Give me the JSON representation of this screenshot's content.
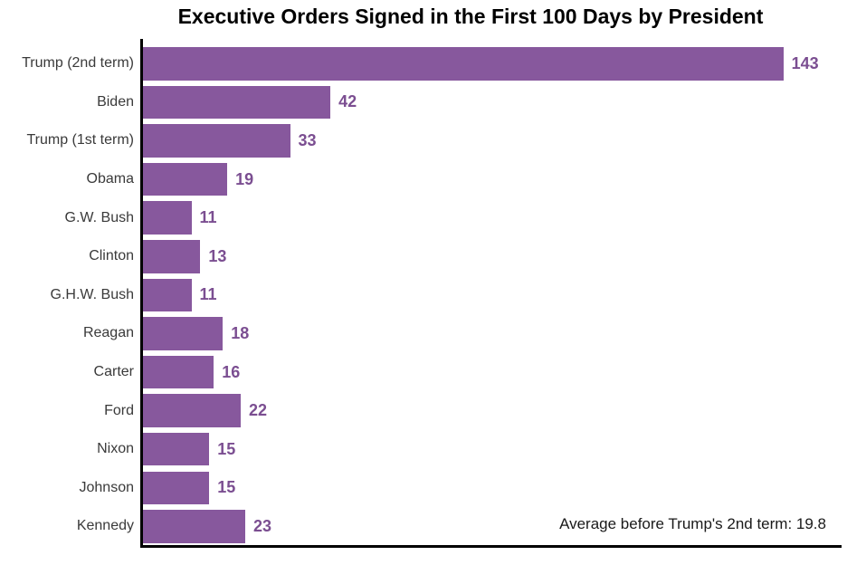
{
  "chart_data": {
    "type": "bar",
    "orientation": "horizontal",
    "title": "Executive Orders Signed in the First 100 Days by President",
    "categories": [
      "Trump (2nd term)",
      "Biden",
      "Trump (1st term)",
      "Obama",
      "G.W. Bush",
      "Clinton",
      "G.H.W. Bush",
      "Reagan",
      "Carter",
      "Ford",
      "Nixon",
      "Johnson",
      "Kennedy"
    ],
    "values": [
      143,
      42,
      33,
      19,
      11,
      13,
      11,
      18,
      16,
      22,
      15,
      15,
      23
    ],
    "value_labels_shown": true,
    "annotation": "Average before Trump's 2nd term: 19.8",
    "xlabel": "",
    "ylabel": "",
    "xlim": [
      0,
      156
    ],
    "grid": false,
    "legend": null,
    "colors": {
      "bar": "#87589D",
      "value_label": "#7B4E91",
      "title": "#000000",
      "category_label": "#3A3A3A",
      "annotation": "#1A1A1A",
      "axis_spine": "#000000",
      "background": "#FFFFFF"
    }
  }
}
